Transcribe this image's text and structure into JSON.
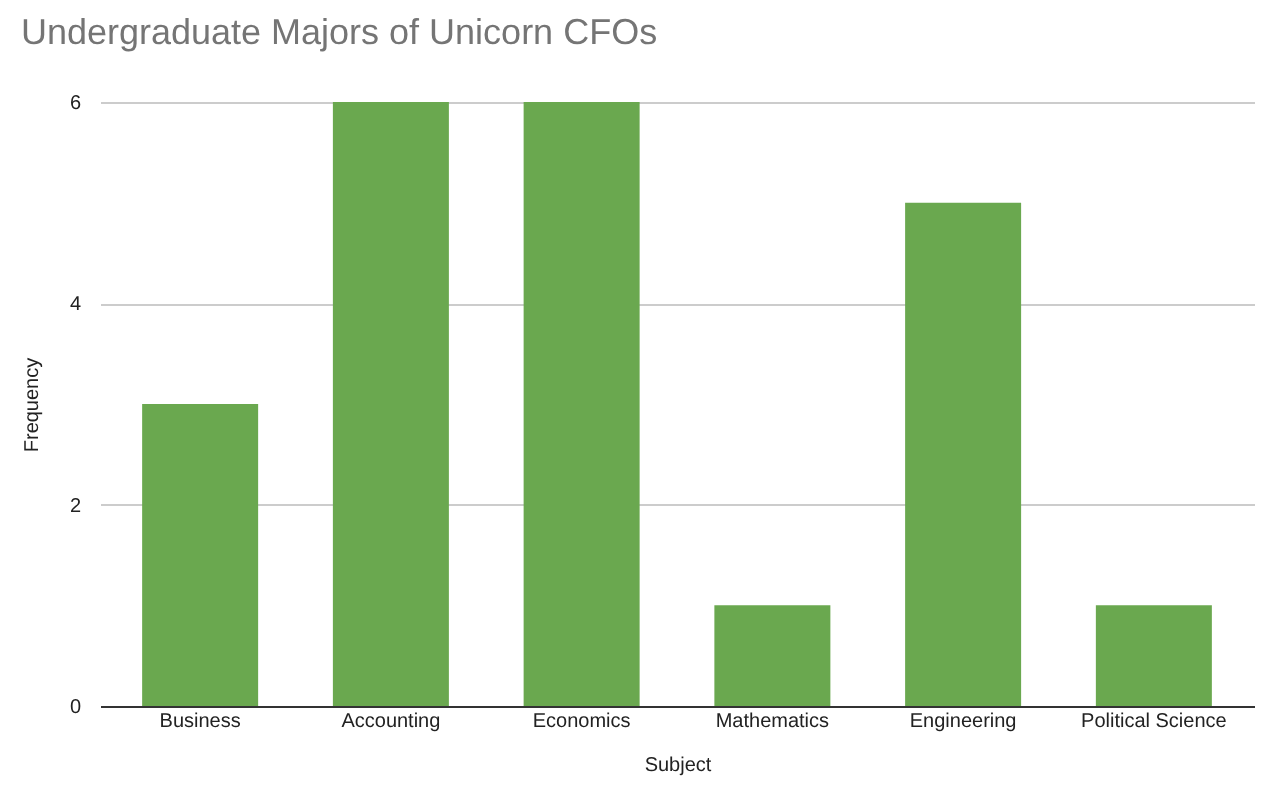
{
  "chart_data": {
    "type": "bar",
    "title": "Undergraduate Majors of Unicorn CFOs",
    "xlabel": "Subject",
    "ylabel": "Frequency",
    "categories": [
      "Business",
      "Accounting",
      "Economics",
      "Mathematics",
      "Engineering",
      "Political Science"
    ],
    "values": [
      3,
      6,
      6,
      1,
      5,
      1
    ],
    "color": "#6aa84f",
    "ylim": [
      0,
      6
    ],
    "yticks": [
      0,
      2,
      4,
      6
    ],
    "grid": "y"
  }
}
